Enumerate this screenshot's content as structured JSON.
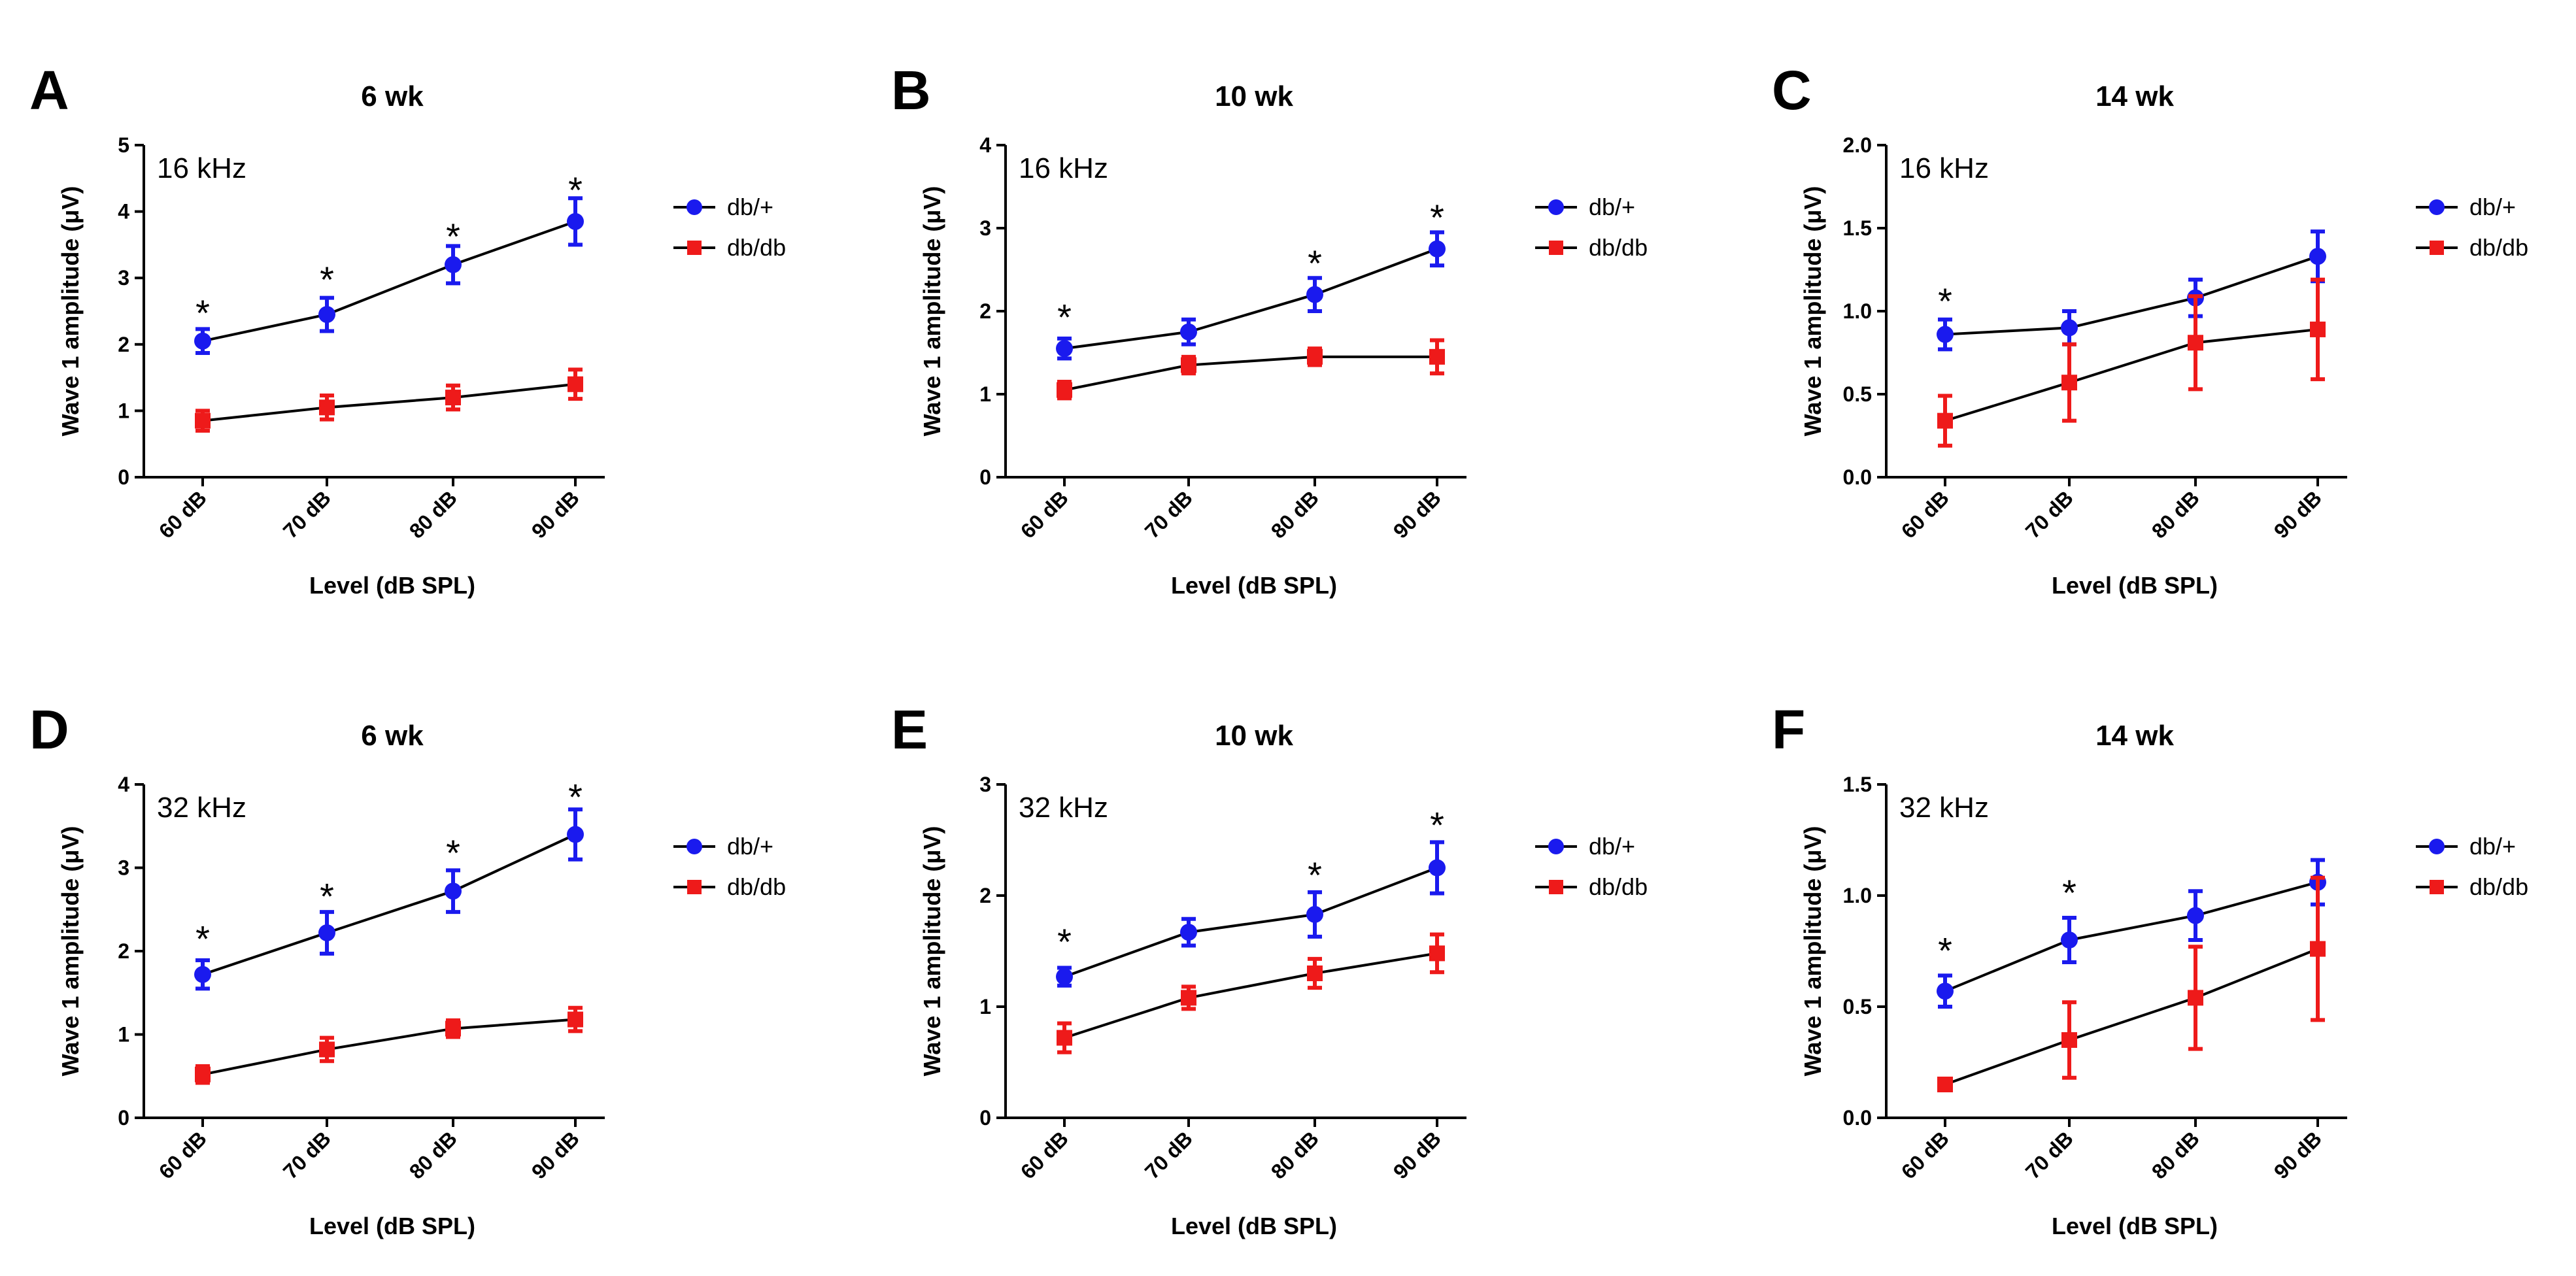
{
  "colors": {
    "db_plus": "#1a1aee",
    "db_db": "#ee1a1a",
    "axis": "#000000"
  },
  "chart_data": [
    {
      "panel": "A",
      "type": "line",
      "title": "6 wk",
      "annotation": "16 kHz",
      "xlabel": "Level (dB SPL)",
      "ylabel": "Wave 1 amplitude (μV)",
      "categories": [
        "60 dB",
        "70 dB",
        "80 dB",
        "90 dB"
      ],
      "ylim": [
        0,
        5
      ],
      "yticks": [
        "0",
        "1",
        "2",
        "3",
        "4",
        "5"
      ],
      "ytick_values": [
        0,
        1,
        2,
        3,
        4,
        5
      ],
      "series": [
        {
          "name": "db/+",
          "color": "#1a1aee",
          "marker": "circle",
          "values": [
            2.05,
            2.45,
            3.2,
            3.85
          ],
          "errors": [
            0.18,
            0.25,
            0.28,
            0.35
          ]
        },
        {
          "name": "db/db",
          "color": "#ee1a1a",
          "marker": "square",
          "values": [
            0.85,
            1.05,
            1.2,
            1.4
          ],
          "errors": [
            0.15,
            0.18,
            0.18,
            0.22
          ]
        }
      ],
      "significance": [
        "*",
        "*",
        "*",
        "*"
      ],
      "significance_y": [
        2.5,
        3.0,
        3.65,
        4.35
      ]
    },
    {
      "panel": "B",
      "type": "line",
      "title": "10 wk",
      "annotation": "16 kHz",
      "xlabel": "Level (dB SPL)",
      "ylabel": "Wave 1 amplitude (μV)",
      "categories": [
        "60 dB",
        "70 dB",
        "80 dB",
        "90 dB"
      ],
      "ylim": [
        0,
        4
      ],
      "yticks": [
        "0",
        "1",
        "2",
        "3",
        "4"
      ],
      "ytick_values": [
        0,
        1,
        2,
        3,
        4
      ],
      "series": [
        {
          "name": "db/+",
          "color": "#1a1aee",
          "marker": "circle",
          "values": [
            1.55,
            1.75,
            2.2,
            2.75
          ],
          "errors": [
            0.12,
            0.15,
            0.2,
            0.2
          ]
        },
        {
          "name": "db/db",
          "color": "#ee1a1a",
          "marker": "square",
          "values": [
            1.05,
            1.35,
            1.45,
            1.45
          ],
          "errors": [
            0.1,
            0.1,
            0.1,
            0.2
          ]
        }
      ],
      "significance": [
        "*",
        "",
        "*",
        "*"
      ],
      "significance_y": [
        1.95,
        0,
        2.6,
        3.15
      ]
    },
    {
      "panel": "C",
      "type": "line",
      "title": "14 wk",
      "annotation": "16 kHz",
      "xlabel": "Level (dB SPL)",
      "ylabel": "Wave 1 amplitude (μV)",
      "categories": [
        "60 dB",
        "70 dB",
        "80 dB",
        "90 dB"
      ],
      "ylim": [
        0,
        2
      ],
      "yticks": [
        "0.0",
        "0.5",
        "1.0",
        "1.5",
        "2.0"
      ],
      "ytick_values": [
        0,
        0.5,
        1,
        1.5,
        2
      ],
      "series": [
        {
          "name": "db/+",
          "color": "#1a1aee",
          "marker": "circle",
          "values": [
            0.86,
            0.9,
            1.08,
            1.33
          ],
          "errors": [
            0.09,
            0.1,
            0.11,
            0.15
          ]
        },
        {
          "name": "db/db",
          "color": "#ee1a1a",
          "marker": "square",
          "values": [
            0.34,
            0.57,
            0.81,
            0.89
          ],
          "errors": [
            0.15,
            0.23,
            0.28,
            0.3
          ]
        }
      ],
      "significance": [
        "*",
        "",
        "",
        ""
      ],
      "significance_y": [
        1.07,
        0,
        0,
        0
      ]
    },
    {
      "panel": "D",
      "type": "line",
      "title": "6 wk",
      "annotation": "32 kHz",
      "xlabel": "Level (dB SPL)",
      "ylabel": "Wave 1 amplitude (μV)",
      "categories": [
        "60 dB",
        "70 dB",
        "80 dB",
        "90 dB"
      ],
      "ylim": [
        0,
        4
      ],
      "yticks": [
        "0",
        "1",
        "2",
        "3",
        "4"
      ],
      "ytick_values": [
        0,
        1,
        2,
        3,
        4
      ],
      "series": [
        {
          "name": "db/+",
          "color": "#1a1aee",
          "marker": "circle",
          "values": [
            1.72,
            2.22,
            2.72,
            3.4
          ],
          "errors": [
            0.17,
            0.25,
            0.25,
            0.3
          ]
        },
        {
          "name": "db/db",
          "color": "#ee1a1a",
          "marker": "square",
          "values": [
            0.52,
            0.82,
            1.07,
            1.18
          ],
          "errors": [
            0.1,
            0.14,
            0.1,
            0.14
          ]
        }
      ],
      "significance": [
        "*",
        "*",
        "*",
        "*"
      ],
      "significance_y": [
        2.17,
        2.68,
        3.2,
        3.87
      ]
    },
    {
      "panel": "E",
      "type": "line",
      "title": "10 wk",
      "annotation": "32 kHz",
      "xlabel": "Level (dB SPL)",
      "ylabel": "Wave 1 amplitude (μV)",
      "categories": [
        "60 dB",
        "70 dB",
        "80 dB",
        "90 dB"
      ],
      "ylim": [
        0,
        3
      ],
      "yticks": [
        "0",
        "1",
        "2",
        "3"
      ],
      "ytick_values": [
        0,
        1,
        2,
        3
      ],
      "series": [
        {
          "name": "db/+",
          "color": "#1a1aee",
          "marker": "circle",
          "values": [
            1.27,
            1.67,
            1.83,
            2.25
          ],
          "errors": [
            0.08,
            0.12,
            0.2,
            0.23
          ]
        },
        {
          "name": "db/db",
          "color": "#ee1a1a",
          "marker": "square",
          "values": [
            0.72,
            1.08,
            1.3,
            1.48
          ],
          "errors": [
            0.13,
            0.1,
            0.13,
            0.17
          ]
        }
      ],
      "significance": [
        "*",
        "",
        "*",
        "*"
      ],
      "significance_y": [
        1.6,
        0,
        2.2,
        2.65
      ]
    },
    {
      "panel": "F",
      "type": "line",
      "title": "14 wk",
      "annotation": "32 kHz",
      "xlabel": "Level (dB SPL)",
      "ylabel": "Wave 1 amplitude (μV)",
      "categories": [
        "60 dB",
        "70 dB",
        "80 dB",
        "90 dB"
      ],
      "ylim": [
        0,
        1.5
      ],
      "yticks": [
        "0.0",
        "0.5",
        "1.0",
        "1.5"
      ],
      "ytick_values": [
        0,
        0.5,
        1,
        1.5
      ],
      "series": [
        {
          "name": "db/+",
          "color": "#1a1aee",
          "marker": "circle",
          "values": [
            0.57,
            0.8,
            0.91,
            1.06
          ],
          "errors": [
            0.07,
            0.1,
            0.11,
            0.1
          ]
        },
        {
          "name": "db/db",
          "color": "#ee1a1a",
          "marker": "square",
          "values": [
            0.15,
            0.35,
            0.54,
            0.76
          ],
          "errors": [
            0.02,
            0.17,
            0.23,
            0.32
          ]
        }
      ],
      "significance": [
        "*",
        "*",
        "",
        ""
      ],
      "significance_y": [
        0.76,
        1.02,
        0,
        0
      ]
    }
  ]
}
